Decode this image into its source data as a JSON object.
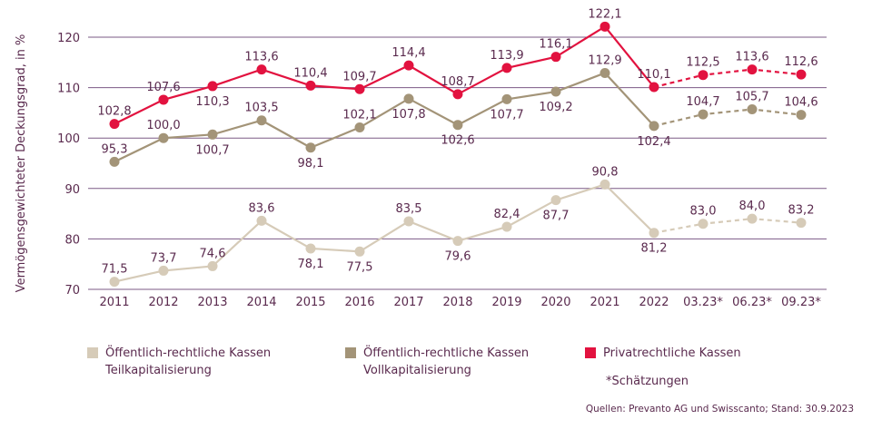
{
  "chart_data": {
    "type": "line",
    "title": "",
    "ylabel": "Vermögensgewichteter Deckungsgrad, in %",
    "xlabel": "",
    "ylim": [
      70,
      120
    ],
    "yticks": [
      70,
      80,
      90,
      100,
      110,
      120
    ],
    "ytick_labels": [
      "70",
      "80",
      "90",
      "100",
      "110",
      "120"
    ],
    "grid": "horizontal",
    "categories": [
      "2011",
      "2012",
      "2013",
      "2014",
      "2015",
      "2016",
      "2017",
      "2018",
      "2019",
      "2020",
      "2021",
      "2022",
      "03.23*",
      "06.23*",
      "09.23*"
    ],
    "estimate_start_index": 11,
    "series": [
      {
        "name": "Öffentlich-rechtliche Kassen Teilkapitalisierung",
        "color": "#d6cbb8",
        "values": [
          71.5,
          73.7,
          74.6,
          83.6,
          78.1,
          77.5,
          83.5,
          79.6,
          82.4,
          87.7,
          90.8,
          81.2,
          83.0,
          84.0,
          83.2
        ],
        "labels": [
          "71,5",
          "73,7",
          "74,6",
          "83,6",
          "78,1",
          "77,5",
          "83,5",
          "79,6",
          "82,4",
          "87,7",
          "90,8",
          "81,2",
          "83,0",
          "84,0",
          "83,2"
        ],
        "label_pos": [
          "above",
          "above",
          "above",
          "above",
          "below",
          "below",
          "above",
          "below",
          "above",
          "below",
          "above",
          "below",
          "above",
          "above",
          "above"
        ]
      },
      {
        "name": "Öffentlich-rechtliche Kassen Vollkapitalisierung",
        "color": "#a39478",
        "values": [
          95.3,
          100.0,
          100.7,
          103.5,
          98.1,
          102.1,
          107.8,
          102.6,
          107.7,
          109.2,
          112.9,
          102.4,
          104.7,
          105.7,
          104.6
        ],
        "labels": [
          "95,3",
          "100,0",
          "100,7",
          "103,5",
          "98,1",
          "102,1",
          "107,8",
          "102,6",
          "107,7",
          "109,2",
          "112,9",
          "102,4",
          "104,7",
          "105,7",
          "104,6"
        ],
        "label_pos": [
          "above",
          "above",
          "below",
          "above",
          "below",
          "above",
          "below",
          "below",
          "below",
          "below",
          "above",
          "below",
          "above",
          "above",
          "above"
        ]
      },
      {
        "name": "Privatrechtliche Kassen",
        "color": "#e2123f",
        "values": [
          102.8,
          107.6,
          110.3,
          113.6,
          110.4,
          109.7,
          114.4,
          108.7,
          113.9,
          116.1,
          122.1,
          110.1,
          112.5,
          113.6,
          112.6
        ],
        "labels": [
          "102,8",
          "107,6",
          "110,3",
          "113,6",
          "110,4",
          "109,7",
          "114,4",
          "108,7",
          "113,9",
          "116,1",
          "122,1",
          "110,1",
          "112,5",
          "113,6",
          "112,6"
        ],
        "label_pos": [
          "above",
          "above",
          "below",
          "above",
          "above",
          "above",
          "above",
          "above",
          "above",
          "above",
          "above",
          "above",
          "above",
          "above",
          "above"
        ]
      }
    ],
    "legend": "bottom",
    "gridline_color": "#7b5a86",
    "text_color": "#5a2a4e"
  },
  "legend": {
    "items": [
      {
        "line1": "Öffentlich-rechtliche Kassen",
        "line2": "Teilkapitalisierung",
        "color": "#d6cbb8"
      },
      {
        "line1": "Öffentlich-rechtliche Kassen",
        "line2": "Vollkapitalisierung",
        "color": "#a39478"
      },
      {
        "line1": "Privatrechtliche Kassen",
        "line2": "",
        "color": "#e2123f"
      }
    ]
  },
  "note": "*Schätzungen",
  "source": "Quellen: Prevanto AG und Swisscanto; Stand: 30.9.2023"
}
